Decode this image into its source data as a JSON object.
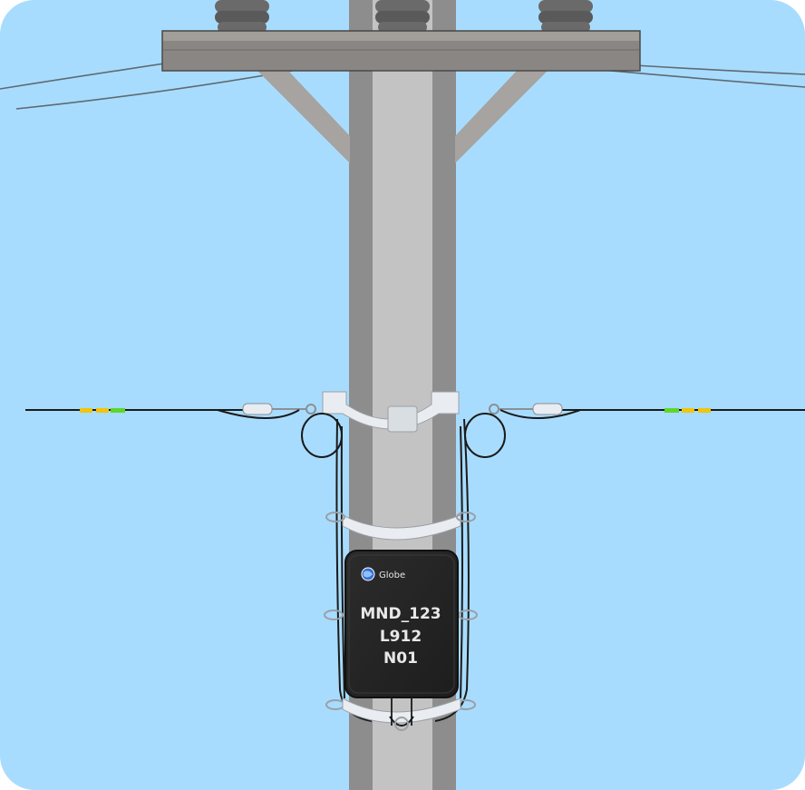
{
  "colors": {
    "sky": "#a8dcfe",
    "pole_light": "#c3c3c3",
    "pole_dark": "#8e8d8d",
    "crossarm": "#8a8683",
    "box": "#262626",
    "cable": "#1a1a1a",
    "bracket": "#e9edf1",
    "tape_yellow": "#f1c40f",
    "tape_green": "#5ed62c"
  },
  "enclosure": {
    "brand": "Globe",
    "brand_icon": "globe-logo-icon",
    "label_lines": [
      "MND_123",
      "L912",
      "N01"
    ]
  }
}
